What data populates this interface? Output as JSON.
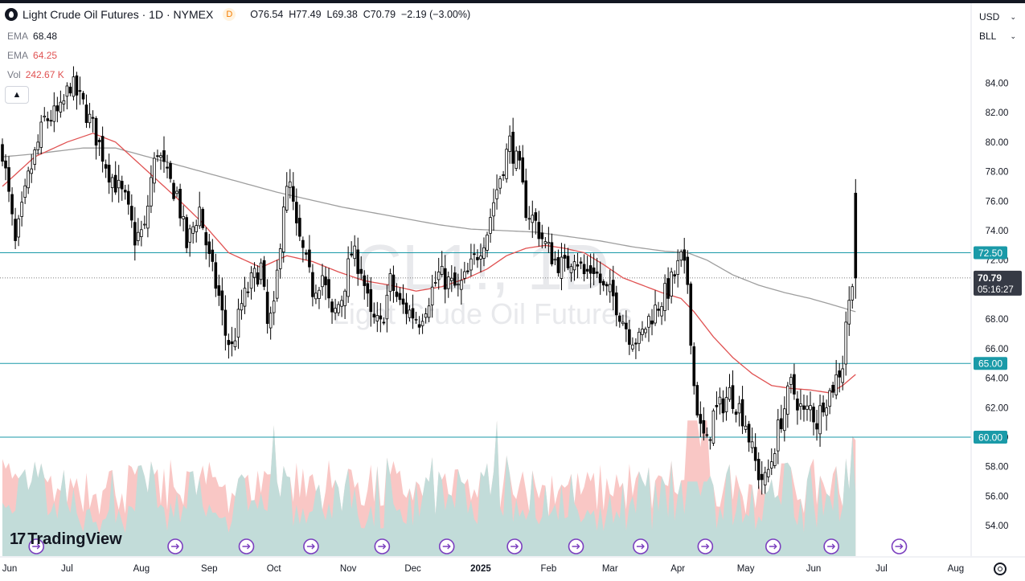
{
  "header": {
    "symbol_title": "Light Crude Oil Futures · 1D · NYMEX",
    "delay_badge": "D",
    "open_label": "O",
    "open": "76.54",
    "high_label": "H",
    "high": "77.49",
    "low_label": "L",
    "low": "69.38",
    "close_label": "C",
    "close": "70.79",
    "change": "−2.19 (−3.00%)"
  },
  "indicators": [
    {
      "name": "EMA",
      "value": "68.48"
    },
    {
      "name": "EMA",
      "value": "64.25"
    },
    {
      "name": "Vol",
      "value": "242.67 K"
    }
  ],
  "selectors": {
    "currency": "USD",
    "unit": "BLL"
  },
  "watermark": {
    "symbol": "CL1!, 1D",
    "name": "Light Crude Oil Futures"
  },
  "branding": {
    "logo_text": "TradingView"
  },
  "colors": {
    "up": "#26a69a",
    "down": "#ef5350",
    "candle": "#000000",
    "ema_slow": "#9e9e9e",
    "ema_fast": "#e05252",
    "hline": "#1a9aa8",
    "vol_up": "#b9dfdc",
    "vol_down": "#f7b9b7",
    "event": "#7b3fbf",
    "price_tag": "#363a45",
    "level_tag": "#1a9aa8"
  },
  "chart_data": {
    "type": "candlestick",
    "yaxis": {
      "ticks": [
        54,
        56,
        58,
        60,
        62,
        64,
        66,
        68,
        70,
        72,
        74,
        76,
        78,
        80,
        82,
        84
      ],
      "range": [
        52.7,
        86.2
      ]
    },
    "xaxis": {
      "labels": [
        {
          "label": "Jun",
          "i": -1
        },
        {
          "label": "Jul",
          "i": 20
        },
        {
          "label": "Aug",
          "i": 43
        },
        {
          "label": "Sep",
          "i": 64
        },
        {
          "label": "Oct",
          "i": 84
        },
        {
          "label": "Nov",
          "i": 107
        },
        {
          "label": "Dec",
          "i": 127
        },
        {
          "label": "2025",
          "i": 148,
          "bold": true
        },
        {
          "label": "Feb",
          "i": 169
        },
        {
          "label": "Mar",
          "i": 188
        },
        {
          "label": "Apr",
          "i": 209
        },
        {
          "label": "May",
          "i": 230
        },
        {
          "label": "Jun",
          "i": 251
        },
        {
          "label": "Jul",
          "i": 272
        },
        {
          "label": "Aug",
          "i": 295
        }
      ]
    },
    "bars_count": 265,
    "waypoints": [
      [
        0,
        79.5
      ],
      [
        4,
        73.0
      ],
      [
        8,
        77.5
      ],
      [
        13,
        81.5
      ],
      [
        18,
        82.0
      ],
      [
        21,
        84.0
      ],
      [
        25,
        82.5
      ],
      [
        28,
        81.0
      ],
      [
        33,
        78.0
      ],
      [
        38,
        76.0
      ],
      [
        41,
        73.5
      ],
      [
        44,
        74.0
      ],
      [
        46,
        77.5
      ],
      [
        48,
        79.5
      ],
      [
        51,
        77.5
      ],
      [
        54,
        76.5
      ],
      [
        57,
        73.0
      ],
      [
        61,
        75.5
      ],
      [
        64,
        72.0
      ],
      [
        67,
        69.5
      ],
      [
        69,
        67.0
      ],
      [
        71,
        66.0
      ],
      [
        74,
        69.0
      ],
      [
        77,
        70.5
      ],
      [
        80,
        71.5
      ],
      [
        82,
        67.5
      ],
      [
        84,
        68.5
      ],
      [
        87,
        76.0
      ],
      [
        89,
        77.0
      ],
      [
        91,
        74.0
      ],
      [
        93,
        72.5
      ],
      [
        96,
        70.0
      ],
      [
        99,
        71.0
      ],
      [
        102,
        68.0
      ],
      [
        105,
        69.5
      ],
      [
        108,
        72.5
      ],
      [
        111,
        71.5
      ],
      [
        114,
        68.0
      ],
      [
        117,
        67.5
      ],
      [
        120,
        70.5
      ],
      [
        123,
        69.0
      ],
      [
        126,
        68.5
      ],
      [
        129,
        68.0
      ],
      [
        132,
        69.5
      ],
      [
        135,
        71.0
      ],
      [
        138,
        70.5
      ],
      [
        141,
        70.0
      ],
      [
        144,
        71.0
      ],
      [
        147,
        72.5
      ],
      [
        150,
        74.0
      ],
      [
        152,
        76.0
      ],
      [
        155,
        78.5
      ],
      [
        157,
        80.0
      ],
      [
        160,
        78.0
      ],
      [
        162,
        75.5
      ],
      [
        165,
        74.5
      ],
      [
        168,
        73.0
      ],
      [
        171,
        72.0
      ],
      [
        174,
        71.5
      ],
      [
        177,
        72.5
      ],
      [
        180,
        71.0
      ],
      [
        183,
        71.5
      ],
      [
        186,
        70.0
      ],
      [
        189,
        69.5
      ],
      [
        192,
        68.0
      ],
      [
        194,
        67.0
      ],
      [
        197,
        66.5
      ],
      [
        200,
        68.0
      ],
      [
        203,
        69.0
      ],
      [
        206,
        70.0
      ],
      [
        208,
        71.0
      ],
      [
        210,
        72.0
      ],
      [
        212,
        70.5
      ],
      [
        213,
        67.0
      ],
      [
        214,
        63.5
      ],
      [
        216,
        60.5
      ],
      [
        218,
        59.5
      ],
      [
        220,
        61.5
      ],
      [
        222,
        62.0
      ],
      [
        225,
        63.0
      ],
      [
        228,
        62.0
      ],
      [
        230,
        61.0
      ],
      [
        232,
        59.0
      ],
      [
        234,
        57.5
      ],
      [
        236,
        57.0
      ],
      [
        238,
        58.5
      ],
      [
        240,
        60.5
      ],
      [
        242,
        62.0
      ],
      [
        244,
        63.5
      ],
      [
        246,
        62.5
      ],
      [
        248,
        61.5
      ],
      [
        250,
        62.0
      ],
      [
        252,
        61.0
      ],
      [
        254,
        62.5
      ],
      [
        256,
        63.0
      ],
      [
        258,
        64.0
      ],
      [
        260,
        65.0
      ],
      [
        261,
        68.0
      ],
      [
        262,
        69.0
      ],
      [
        263,
        71.0
      ],
      [
        264,
        76.0
      ]
    ],
    "last_candle": {
      "open": 76.54,
      "high": 77.49,
      "low": 69.38,
      "close": 70.79
    },
    "ema_fast_waypoints": [
      [
        0,
        77.0
      ],
      [
        10,
        79.0
      ],
      [
        20,
        80.0
      ],
      [
        28,
        80.6
      ],
      [
        35,
        80.0
      ],
      [
        45,
        78.0
      ],
      [
        55,
        76.0
      ],
      [
        62,
        74.5
      ],
      [
        70,
        72.5
      ],
      [
        80,
        71.5
      ],
      [
        88,
        72.3
      ],
      [
        96,
        71.9
      ],
      [
        104,
        71.2
      ],
      [
        112,
        70.6
      ],
      [
        120,
        70.3
      ],
      [
        128,
        69.9
      ],
      [
        136,
        70.2
      ],
      [
        144,
        70.8
      ],
      [
        150,
        71.4
      ],
      [
        156,
        72.3
      ],
      [
        162,
        72.8
      ],
      [
        168,
        73.0
      ],
      [
        174,
        72.8
      ],
      [
        180,
        72.5
      ],
      [
        186,
        71.7
      ],
      [
        192,
        70.8
      ],
      [
        198,
        70.3
      ],
      [
        204,
        69.8
      ],
      [
        210,
        69.4
      ],
      [
        214,
        68.5
      ],
      [
        220,
        66.8
      ],
      [
        226,
        65.4
      ],
      [
        232,
        64.3
      ],
      [
        238,
        63.5
      ],
      [
        244,
        63.3
      ],
      [
        250,
        63.2
      ],
      [
        256,
        63.0
      ],
      [
        260,
        63.5
      ],
      [
        264,
        64.25
      ]
    ],
    "ema_slow_waypoints": [
      [
        0,
        79.0
      ],
      [
        10,
        79.2
      ],
      [
        25,
        79.6
      ],
      [
        35,
        79.6
      ],
      [
        45,
        79.0
      ],
      [
        55,
        78.4
      ],
      [
        65,
        77.8
      ],
      [
        75,
        77.2
      ],
      [
        85,
        76.6
      ],
      [
        95,
        76.1
      ],
      [
        105,
        75.6
      ],
      [
        115,
        75.2
      ],
      [
        125,
        74.8
      ],
      [
        135,
        74.4
      ],
      [
        145,
        74.1
      ],
      [
        155,
        74.0
      ],
      [
        165,
        73.9
      ],
      [
        175,
        73.6
      ],
      [
        185,
        73.3
      ],
      [
        195,
        72.9
      ],
      [
        205,
        72.6
      ],
      [
        212,
        72.5
      ],
      [
        218,
        72.0
      ],
      [
        226,
        71.0
      ],
      [
        234,
        70.3
      ],
      [
        242,
        69.8
      ],
      [
        250,
        69.4
      ],
      [
        258,
        68.9
      ],
      [
        264,
        68.5
      ]
    ],
    "horizontal_levels": [
      72.5,
      65.0,
      60.0
    ],
    "current_price": 70.79,
    "level_labels": [
      "72.50",
      "65.00",
      "60.00"
    ],
    "price_label": "70.79",
    "countdown": "05:16:27",
    "events_i": [
      10,
      53,
      75,
      95,
      117,
      137,
      158,
      177,
      197,
      217,
      238,
      256,
      277
    ]
  }
}
